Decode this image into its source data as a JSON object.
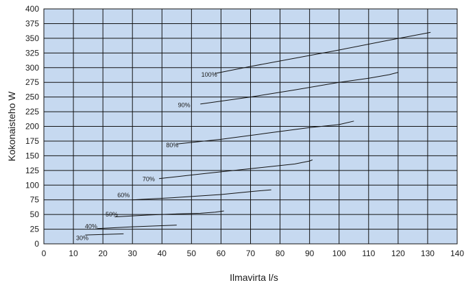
{
  "chart_data": {
    "type": "line",
    "title": "",
    "xlabel": "Ilmavirta l/s",
    "ylabel": "Kokonaisteho W",
    "xlim": [
      0,
      140
    ],
    "ylim": [
      0,
      400
    ],
    "xticks": [
      0,
      10,
      20,
      30,
      40,
      50,
      60,
      70,
      80,
      90,
      100,
      110,
      120,
      130,
      140
    ],
    "yticks": [
      0,
      25,
      50,
      75,
      100,
      125,
      150,
      175,
      200,
      225,
      250,
      275,
      300,
      325,
      350,
      375,
      400
    ],
    "grid": true,
    "plot_background": "#c6d9f0",
    "line_color": "#111111",
    "series": [
      {
        "name": "100%",
        "label_at": [
          56,
          288
        ],
        "points": [
          [
            58,
            290
          ],
          [
            70,
            302
          ],
          [
            85,
            316
          ],
          [
            100,
            330
          ],
          [
            115,
            345
          ],
          [
            131,
            360
          ]
        ]
      },
      {
        "name": "90%",
        "label_at": [
          47.5,
          236
        ],
        "points": [
          [
            53,
            238
          ],
          [
            70,
            250
          ],
          [
            85,
            262
          ],
          [
            100,
            275
          ],
          [
            110,
            282
          ],
          [
            117,
            288
          ],
          [
            120,
            292
          ]
        ]
      },
      {
        "name": "80%",
        "label_at": [
          43.5,
          168
        ],
        "points": [
          [
            45,
            170
          ],
          [
            60,
            178
          ],
          [
            75,
            188
          ],
          [
            90,
            198
          ],
          [
            100,
            203
          ],
          [
            105,
            209
          ]
        ]
      },
      {
        "name": "70%",
        "label_at": [
          35.5,
          110
        ],
        "points": [
          [
            39,
            111
          ],
          [
            55,
            120
          ],
          [
            70,
            128
          ],
          [
            85,
            136
          ],
          [
            90,
            141
          ],
          [
            91,
            143
          ]
        ]
      },
      {
        "name": "60%",
        "label_at": [
          27,
          83
        ],
        "points": [
          [
            30,
            75
          ],
          [
            45,
            79
          ],
          [
            60,
            84
          ],
          [
            70,
            89
          ],
          [
            77,
            92
          ]
        ]
      },
      {
        "name": "50%",
        "label_at": [
          23,
          50
        ],
        "points": [
          [
            24,
            46
          ],
          [
            35,
            49
          ],
          [
            45,
            51
          ],
          [
            53,
            52
          ],
          [
            58,
            54
          ],
          [
            61,
            56
          ]
        ]
      },
      {
        "name": "40%",
        "label_at": [
          16,
          30
        ],
        "points": [
          [
            18,
            26
          ],
          [
            30,
            29
          ],
          [
            45,
            32
          ]
        ]
      },
      {
        "name": "30%",
        "label_at": [
          13,
          10
        ],
        "points": [
          [
            14,
            15
          ],
          [
            27,
            17
          ]
        ]
      }
    ]
  }
}
